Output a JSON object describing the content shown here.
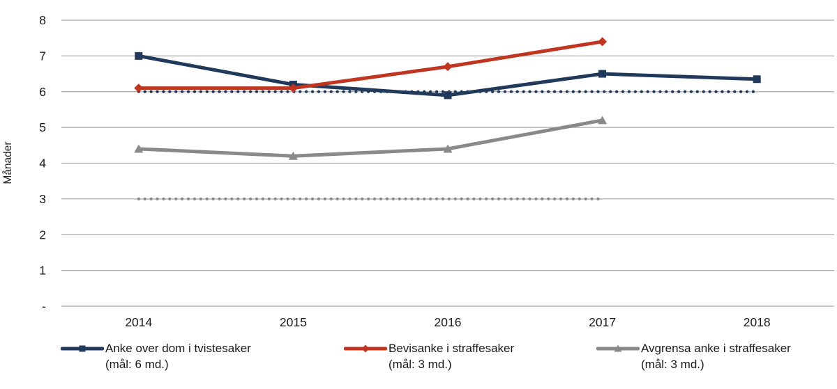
{
  "chart_data": {
    "type": "line",
    "title": "",
    "ylabel": "Månader",
    "xlabel": "",
    "x_labels": [
      "2014",
      "2015",
      "2016",
      "2017",
      "2018"
    ],
    "ylim": [
      0,
      8
    ],
    "ytick_values": [
      8,
      7,
      6,
      5,
      4,
      3,
      2,
      1,
      0
    ],
    "ytick_labels": [
      "8",
      "7",
      "6",
      "5",
      "4",
      "3",
      "2",
      "1",
      "-"
    ],
    "grid": "horizontal",
    "legend_position": "bottom",
    "axis_color": "#a9a9a9",
    "text_color": "#1a1a1a",
    "series": [
      {
        "name": "Anke over dom i tvistesaker (mål: 6 md.)",
        "legend_line1": "Anke over dom i tvistesaker",
        "legend_line2": "(mål: 6 md.)",
        "color": "#213a5c",
        "marker": "square",
        "line_style": "solid",
        "values": [
          7.0,
          6.2,
          5.9,
          6.5,
          6.35
        ]
      },
      {
        "name": "Bevisanke i straffesaker (mål: 3 md.)",
        "legend_line1": "Bevisanke i straffesaker",
        "legend_line2": "(mål: 3 md.)",
        "color": "#c0351f",
        "marker": "diamond",
        "line_style": "solid",
        "values": [
          6.1,
          6.1,
          6.7,
          7.4,
          null
        ]
      },
      {
        "name": "Avgrensa anke i straffesaker (mål: 3 md.)",
        "legend_line1": "Avgrensa anke i straffesaker",
        "legend_line2": "(mål: 3 md.)",
        "color": "#898989",
        "marker": "triangle",
        "line_style": "solid",
        "values": [
          4.4,
          4.2,
          4.4,
          5.2,
          null
        ]
      }
    ],
    "target_lines": [
      {
        "value": 6,
        "label": "mål: 6 md.",
        "color": "#213a5c",
        "style": "dotted",
        "x_start": "2014",
        "x_end": "2018"
      },
      {
        "value": 3,
        "label": "mål: 3 md.",
        "color": "#898989",
        "style": "dotted",
        "x_start": "2014",
        "x_end": "2017"
      }
    ]
  }
}
